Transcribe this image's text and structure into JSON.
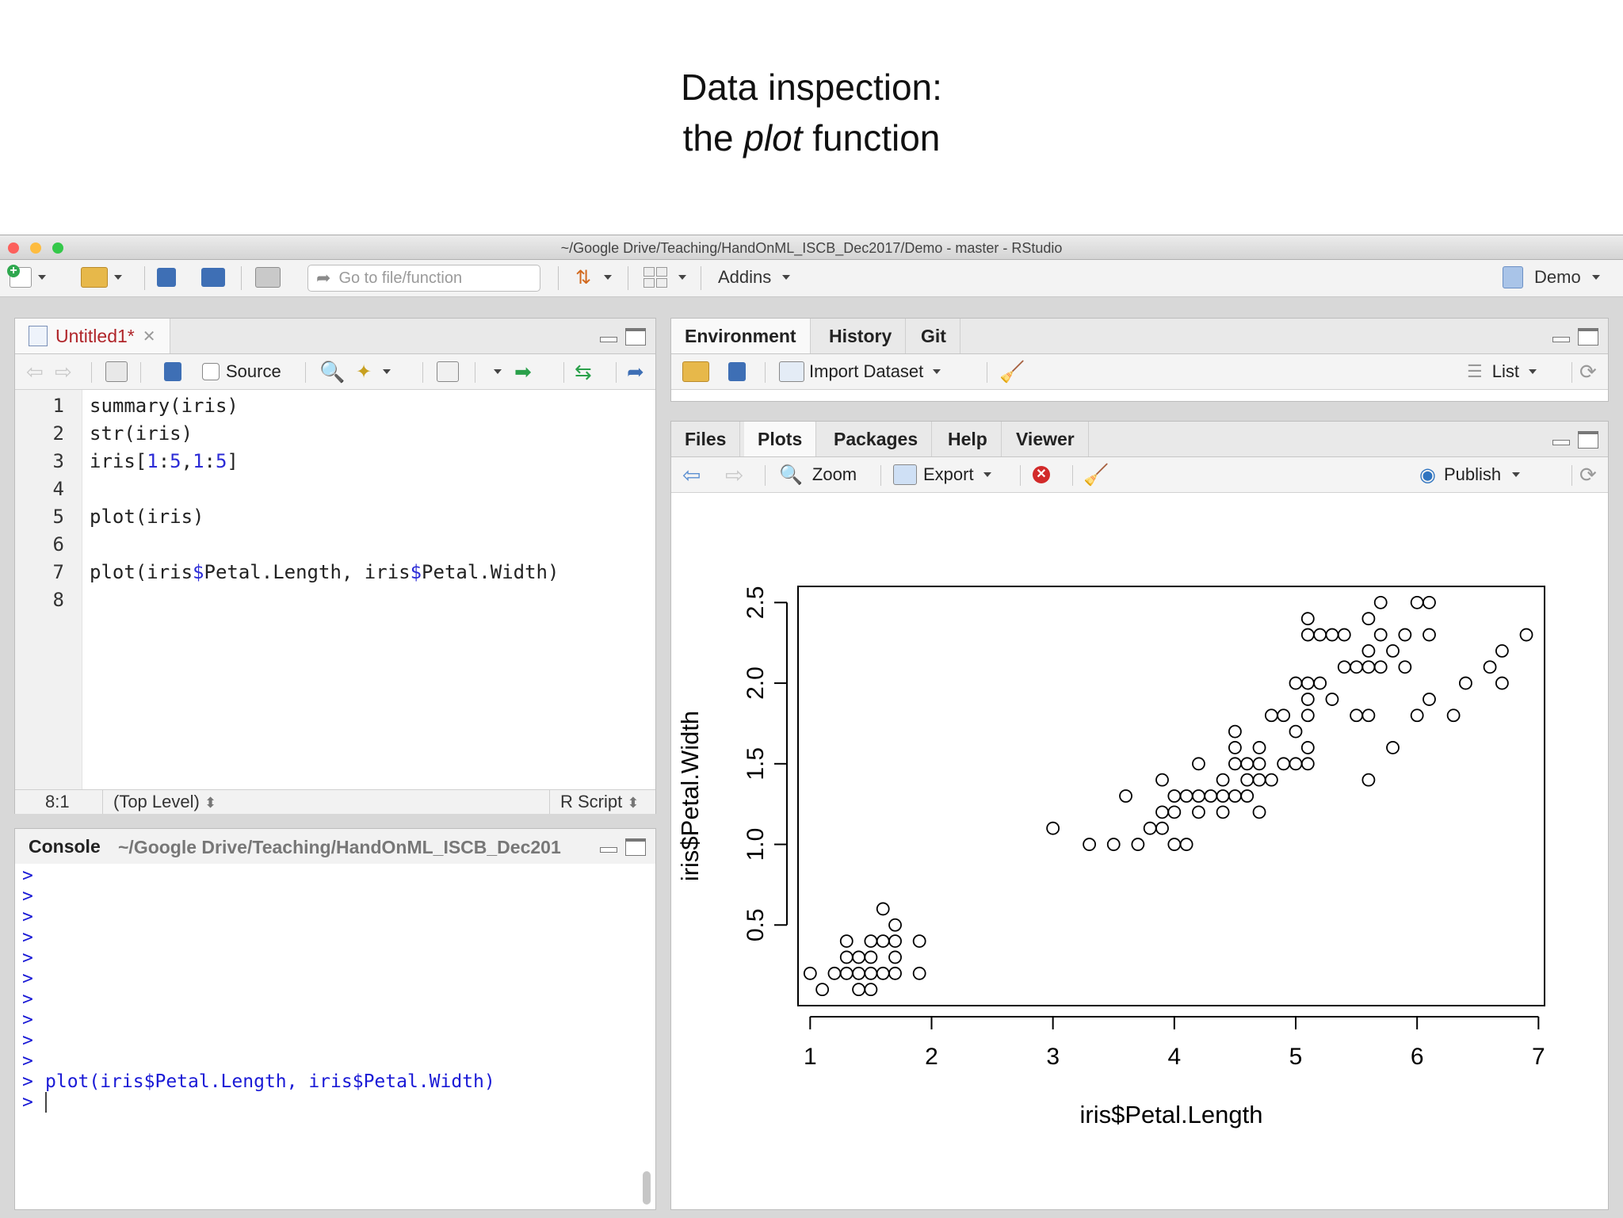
{
  "slide": {
    "title_line1": "Data inspection:",
    "title_line2_pre": "the ",
    "title_line2_em": "plot",
    "title_line2_post": " function"
  },
  "window": {
    "title": "~/Google Drive/Teaching/HandOnML_ISCB_Dec2017/Demo - master - RStudio"
  },
  "toolbar": {
    "goto_placeholder": "Go to file/function",
    "addins_label": "Addins",
    "project_label": "Demo"
  },
  "editor": {
    "tab_label": "Untitled1*",
    "source_label": "Source",
    "lines": [
      {
        "n": "1",
        "text": "summary(iris)"
      },
      {
        "n": "2",
        "text": "str(iris)"
      },
      {
        "n": "3",
        "a": "iris[",
        "b": "1",
        "c": ":",
        "d": "5",
        "e": ",",
        "f": "1",
        "g": ":",
        "h": "5",
        "i": "]"
      },
      {
        "n": "4",
        "text": ""
      },
      {
        "n": "5",
        "text": "plot(iris)"
      },
      {
        "n": "6",
        "text": ""
      },
      {
        "n": "7",
        "a": "plot(iris",
        "b": "$",
        "c": "Petal.Length, iris",
        "d": "$",
        "e": "Petal.Width)"
      },
      {
        "n": "8",
        "text": ""
      }
    ],
    "status_position": "8:1",
    "status_scope": "(Top Level)",
    "status_filetype": "R Script"
  },
  "console": {
    "tab_label": "Console",
    "path": "~/Google Drive/Teaching/HandOnML_ISCB_Dec201",
    "prompt": ">",
    "last_command": "plot(iris$Petal.Length, iris$Petal.Width)"
  },
  "env_pane": {
    "tabs": [
      "Environment",
      "History",
      "Git"
    ],
    "import_label": "Import Dataset",
    "list_label": "List"
  },
  "plots_pane": {
    "tabs": [
      "Files",
      "Plots",
      "Packages",
      "Help",
      "Viewer"
    ],
    "zoom_label": "Zoom",
    "export_label": "Export",
    "publish_label": "Publish"
  },
  "colors": {
    "console_text": "#1a1ad6",
    "editor_tab": "#b0252a",
    "number": "#2b2bd6"
  },
  "chart_data": {
    "type": "scatter",
    "xlabel": "iris$Petal.Length",
    "ylabel": "iris$Petal.Width",
    "xlim": [
      0.9,
      7.05
    ],
    "ylim": [
      0.0,
      2.6
    ],
    "xticks": [
      "1",
      "2",
      "3",
      "4",
      "5",
      "6",
      "7"
    ],
    "yticks": [
      "0.5",
      "1.0",
      "1.5",
      "2.0",
      "2.5"
    ],
    "marker": "open-circle",
    "points": [
      [
        1.0,
        0.2
      ],
      [
        1.1,
        0.1
      ],
      [
        1.2,
        0.2
      ],
      [
        1.3,
        0.2
      ],
      [
        1.3,
        0.3
      ],
      [
        1.3,
        0.4
      ],
      [
        1.4,
        0.2
      ],
      [
        1.4,
        0.3
      ],
      [
        1.4,
        0.1
      ],
      [
        1.5,
        0.2
      ],
      [
        1.5,
        0.1
      ],
      [
        1.5,
        0.4
      ],
      [
        1.5,
        0.3
      ],
      [
        1.6,
        0.2
      ],
      [
        1.6,
        0.4
      ],
      [
        1.6,
        0.6
      ],
      [
        1.7,
        0.2
      ],
      [
        1.7,
        0.3
      ],
      [
        1.7,
        0.4
      ],
      [
        1.7,
        0.5
      ],
      [
        1.9,
        0.2
      ],
      [
        1.9,
        0.4
      ],
      [
        3.0,
        1.1
      ],
      [
        3.3,
        1.0
      ],
      [
        3.5,
        1.0
      ],
      [
        3.6,
        1.3
      ],
      [
        3.7,
        1.0
      ],
      [
        3.8,
        1.1
      ],
      [
        3.9,
        1.1
      ],
      [
        3.9,
        1.2
      ],
      [
        3.9,
        1.4
      ],
      [
        4.0,
        1.0
      ],
      [
        4.0,
        1.2
      ],
      [
        4.0,
        1.3
      ],
      [
        4.1,
        1.0
      ],
      [
        4.1,
        1.3
      ],
      [
        4.2,
        1.3
      ],
      [
        4.2,
        1.2
      ],
      [
        4.2,
        1.5
      ],
      [
        4.3,
        1.3
      ],
      [
        4.4,
        1.2
      ],
      [
        4.4,
        1.3
      ],
      [
        4.4,
        1.4
      ],
      [
        4.5,
        1.3
      ],
      [
        4.5,
        1.5
      ],
      [
        4.5,
        1.7
      ],
      [
        4.5,
        1.6
      ],
      [
        4.6,
        1.3
      ],
      [
        4.6,
        1.4
      ],
      [
        4.6,
        1.5
      ],
      [
        4.7,
        1.2
      ],
      [
        4.7,
        1.4
      ],
      [
        4.7,
        1.5
      ],
      [
        4.7,
        1.6
      ],
      [
        4.8,
        1.4
      ],
      [
        4.8,
        1.8
      ],
      [
        4.9,
        1.5
      ],
      [
        4.9,
        1.8
      ],
      [
        5.0,
        1.5
      ],
      [
        5.0,
        1.7
      ],
      [
        5.0,
        2.0
      ],
      [
        5.1,
        1.5
      ],
      [
        5.1,
        1.6
      ],
      [
        5.1,
        1.8
      ],
      [
        5.1,
        1.9
      ],
      [
        5.1,
        2.0
      ],
      [
        5.1,
        2.3
      ],
      [
        5.1,
        2.4
      ],
      [
        5.2,
        2.0
      ],
      [
        5.2,
        2.3
      ],
      [
        5.3,
        1.9
      ],
      [
        5.3,
        2.3
      ],
      [
        5.4,
        2.1
      ],
      [
        5.4,
        2.3
      ],
      [
        5.5,
        1.8
      ],
      [
        5.5,
        2.1
      ],
      [
        5.6,
        1.4
      ],
      [
        5.6,
        1.8
      ],
      [
        5.6,
        2.1
      ],
      [
        5.6,
        2.2
      ],
      [
        5.6,
        2.4
      ],
      [
        5.7,
        2.1
      ],
      [
        5.7,
        2.3
      ],
      [
        5.7,
        2.5
      ],
      [
        5.8,
        1.6
      ],
      [
        5.8,
        2.2
      ],
      [
        5.9,
        2.1
      ],
      [
        5.9,
        2.3
      ],
      [
        6.0,
        1.8
      ],
      [
        6.0,
        2.5
      ],
      [
        6.1,
        1.9
      ],
      [
        6.1,
        2.3
      ],
      [
        6.1,
        2.5
      ],
      [
        6.3,
        1.8
      ],
      [
        6.4,
        2.0
      ],
      [
        6.6,
        2.1
      ],
      [
        6.7,
        2.0
      ],
      [
        6.7,
        2.2
      ],
      [
        6.9,
        2.3
      ]
    ]
  }
}
